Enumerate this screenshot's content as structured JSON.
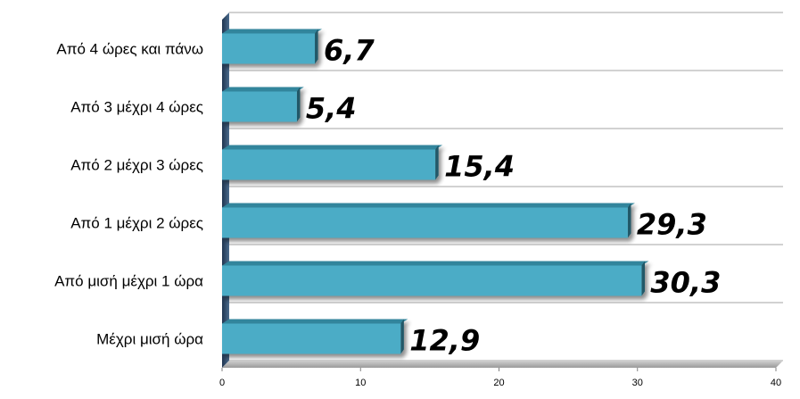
{
  "chart_data": {
    "type": "bar",
    "orientation": "horizontal",
    "categories": [
      "Μέχρι μισή ώρα",
      "Από μισή μέχρι 1 ώρα",
      "Από 1 μέχρι 2 ώρες",
      "Από 2 μέχρι 3 ώρες",
      "Από 3 μέχρι 4 ώρες",
      "Από 4 ώρες και πάνω"
    ],
    "values": [
      12.9,
      30.3,
      29.3,
      15.4,
      5.4,
      6.7
    ],
    "value_labels": [
      "12,9",
      "30,3",
      "29,3",
      "15,4",
      "5,4",
      "6,7"
    ],
    "xlim": [
      0,
      40
    ],
    "xticks": [
      0,
      10,
      20,
      30,
      40
    ],
    "xtick_labels": [
      "0",
      "10",
      "20",
      "30",
      "40"
    ],
    "grid": true,
    "bar_color": "#4BACC6",
    "title": "",
    "xlabel": "",
    "ylabel": ""
  }
}
